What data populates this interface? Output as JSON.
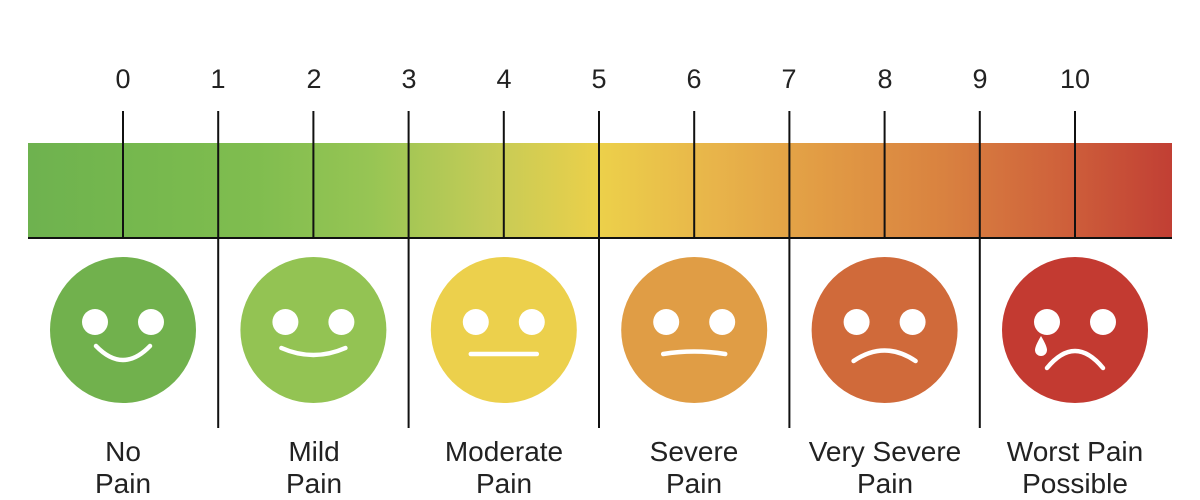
{
  "scale": {
    "numbers": [
      "0",
      "1",
      "2",
      "3",
      "4",
      "5",
      "6",
      "7",
      "8",
      "9",
      "10"
    ],
    "bar_colors": [
      "#6eb24f",
      "#76b84e",
      "#80bd4f",
      "#97c554",
      "#c3cb57",
      "#ecd04a",
      "#e8b44a",
      "#e19a44",
      "#d98240",
      "#cf623b",
      "#c13f34"
    ]
  },
  "categories": [
    {
      "line1": "No",
      "line2": "Pain",
      "face_color": "#71b14d",
      "icon": "happy-face-icon"
    },
    {
      "line1": "Mild",
      "line2": "Pain",
      "face_color": "#93c353",
      "icon": "smiling-face-icon"
    },
    {
      "line1": "Moderate",
      "line2": "Pain",
      "face_color": "#ecd04c",
      "icon": "neutral-face-icon"
    },
    {
      "line1": "Severe",
      "line2": "Pain",
      "face_color": "#e09d45",
      "icon": "uneasy-face-icon"
    },
    {
      "line1": "Very Severe",
      "line2": "Pain",
      "face_color": "#d06a3a",
      "icon": "sad-face-icon"
    },
    {
      "line1": "Worst Pain",
      "line2": "Possible",
      "face_color": "#c33a31",
      "icon": "crying-face-icon"
    }
  ]
}
